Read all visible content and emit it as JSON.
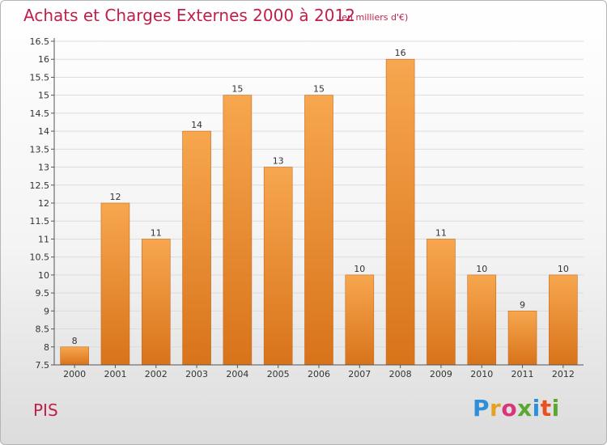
{
  "title": "Achats et Charges Externes 2000 à 2012",
  "subtitle": "(en milliers d'€)",
  "commune": "PIS",
  "brand": "Proxiti",
  "colors": {
    "title": "#c0204a",
    "bar_light": "#f7a74f",
    "bar_dark": "#d8731a",
    "bar_stroke": "#c86a1c",
    "axis": "#555555",
    "grid": "#dcdcdc"
  },
  "chart_data": {
    "type": "bar",
    "categories": [
      "2000",
      "2001",
      "2002",
      "2003",
      "2004",
      "2005",
      "2006",
      "2007",
      "2008",
      "2009",
      "2010",
      "2011",
      "2012"
    ],
    "values": [
      8,
      12,
      11,
      14,
      15,
      13,
      15,
      10,
      16,
      11,
      10,
      9,
      10
    ],
    "value_labels": [
      "8",
      "12",
      "11",
      "14",
      "15",
      "13",
      "15",
      "10",
      "16",
      "11",
      "10",
      "9",
      "10"
    ],
    "ylim": [
      7.5,
      16.5
    ],
    "yticks": [
      7.5,
      8,
      8.5,
      9,
      9.5,
      10,
      10.5,
      11,
      11.5,
      12,
      12.5,
      13,
      13.5,
      14,
      14.5,
      15,
      15.5,
      16,
      16.5
    ],
    "ytick_labels": [
      "7.5",
      "8",
      "8.5",
      "9",
      "9.5",
      "10",
      "10.5",
      "11",
      "11.5",
      "12",
      "12.5",
      "13",
      "13.5",
      "14",
      "14.5",
      "15",
      "15.5",
      "16",
      "16.5"
    ],
    "grid": true,
    "xlabel": "",
    "ylabel": ""
  }
}
